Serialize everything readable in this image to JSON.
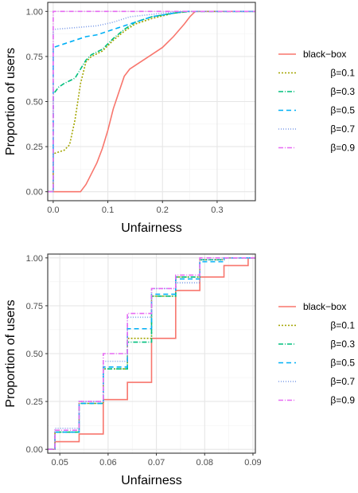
{
  "colors": {
    "black_box": "#F8766D",
    "b01": "#A3A500",
    "b03": "#00BF7D",
    "b05": "#00B0F6",
    "b07": "#7B9BE8",
    "b09": "#E76BF3",
    "grid_major": "#E6E6E6",
    "grid_minor": "#F2F2F2",
    "axis": "#333333"
  },
  "chart_data": [
    {
      "type": "line",
      "subtype": "ecdf-step",
      "xlabel": "Unfairness",
      "ylabel": "Proportion of users",
      "xlim": [
        -0.01,
        0.37
      ],
      "ylim": [
        -0.05,
        1.05
      ],
      "x_ticks": [
        0.0,
        0.1,
        0.2,
        0.3
      ],
      "x_tick_labels": [
        "0.0",
        "0.1",
        "0.2",
        "0.3"
      ],
      "y_ticks": [
        0.0,
        0.25,
        0.5,
        0.75,
        1.0
      ],
      "y_tick_labels": [
        "0.00",
        "0.25",
        "0.50",
        "0.75",
        "1.00"
      ],
      "grid": true,
      "legend_position": "right",
      "series": [
        {
          "name": "black−box",
          "color_key": "black_box",
          "dash": "",
          "points": [
            [
              -0.01,
              0
            ],
            [
              0.05,
              0
            ],
            [
              0.06,
              0.04
            ],
            [
              0.07,
              0.1
            ],
            [
              0.08,
              0.16
            ],
            [
              0.09,
              0.24
            ],
            [
              0.1,
              0.34
            ],
            [
              0.11,
              0.46
            ],
            [
              0.12,
              0.55
            ],
            [
              0.13,
              0.64
            ],
            [
              0.14,
              0.68
            ],
            [
              0.15,
              0.7
            ],
            [
              0.16,
              0.72
            ],
            [
              0.18,
              0.76
            ],
            [
              0.2,
              0.8
            ],
            [
              0.22,
              0.86
            ],
            [
              0.24,
              0.93
            ],
            [
              0.25,
              0.97
            ],
            [
              0.26,
              1.0
            ],
            [
              0.37,
              1.0
            ]
          ]
        },
        {
          "name": "β=0.1",
          "color_key": "b01",
          "dash": "2,2",
          "points": [
            [
              -0.01,
              0
            ],
            [
              0.0,
              0
            ],
            [
              0.0,
              0.21
            ],
            [
              0.02,
              0.23
            ],
            [
              0.03,
              0.26
            ],
            [
              0.04,
              0.4
            ],
            [
              0.05,
              0.6
            ],
            [
              0.06,
              0.72
            ],
            [
              0.07,
              0.75
            ],
            [
              0.09,
              0.78
            ],
            [
              0.11,
              0.84
            ],
            [
              0.13,
              0.89
            ],
            [
              0.15,
              0.93
            ],
            [
              0.18,
              0.96
            ],
            [
              0.22,
              0.99
            ],
            [
              0.25,
              1.0
            ],
            [
              0.37,
              1.0
            ]
          ]
        },
        {
          "name": "β=0.3",
          "color_key": "b03",
          "dash": "6,2,1,2",
          "points": [
            [
              -0.01,
              0
            ],
            [
              0.0,
              0
            ],
            [
              0.0,
              0.54
            ],
            [
              0.01,
              0.58
            ],
            [
              0.02,
              0.6
            ],
            [
              0.04,
              0.63
            ],
            [
              0.05,
              0.68
            ],
            [
              0.06,
              0.73
            ],
            [
              0.07,
              0.76
            ],
            [
              0.09,
              0.79
            ],
            [
              0.11,
              0.85
            ],
            [
              0.13,
              0.9
            ],
            [
              0.15,
              0.94
            ],
            [
              0.18,
              0.97
            ],
            [
              0.22,
              0.99
            ],
            [
              0.25,
              1.0
            ],
            [
              0.37,
              1.0
            ]
          ]
        },
        {
          "name": "β=0.5",
          "color_key": "b05",
          "dash": "6,4",
          "points": [
            [
              -0.01,
              0
            ],
            [
              0.0,
              0
            ],
            [
              0.0,
              0.8
            ],
            [
              0.02,
              0.82
            ],
            [
              0.04,
              0.84
            ],
            [
              0.06,
              0.86
            ],
            [
              0.08,
              0.87
            ],
            [
              0.1,
              0.89
            ],
            [
              0.12,
              0.91
            ],
            [
              0.15,
              0.94
            ],
            [
              0.18,
              0.97
            ],
            [
              0.22,
              0.99
            ],
            [
              0.24,
              1.0
            ],
            [
              0.37,
              1.0
            ]
          ]
        },
        {
          "name": "β=0.7",
          "color_key": "b07",
          "dash": "1,2",
          "points": [
            [
              -0.01,
              0
            ],
            [
              0.0,
              0
            ],
            [
              0.0,
              0.9
            ],
            [
              0.04,
              0.91
            ],
            [
              0.08,
              0.92
            ],
            [
              0.11,
              0.94
            ],
            [
              0.14,
              0.97
            ],
            [
              0.17,
              0.98
            ],
            [
              0.2,
              0.99
            ],
            [
              0.23,
              1.0
            ],
            [
              0.37,
              1.0
            ]
          ]
        },
        {
          "name": "β=0.9",
          "color_key": "b09",
          "dash": "6,2,1,2",
          "points": [
            [
              -0.01,
              0
            ],
            [
              0.0,
              0
            ],
            [
              0.0,
              1.0
            ],
            [
              0.37,
              1.0
            ]
          ]
        }
      ]
    },
    {
      "type": "line",
      "subtype": "ecdf-step",
      "xlabel": "Unfairness",
      "ylabel": "Proportion of users",
      "xlim": [
        0.0475,
        0.0905
      ],
      "ylim": [
        -0.02,
        1.02
      ],
      "x_ticks": [
        0.05,
        0.06,
        0.07,
        0.08,
        0.09
      ],
      "x_tick_labels": [
        "0.05",
        "0.06",
        "0.07",
        "0.08",
        "0.09"
      ],
      "y_ticks": [
        0.0,
        0.25,
        0.5,
        0.75,
        1.0
      ],
      "y_tick_labels": [
        "0.00",
        "0.25",
        "0.50",
        "0.75",
        "1.00"
      ],
      "grid": true,
      "legend_position": "right",
      "series": [
        {
          "name": "black−box",
          "color_key": "black_box",
          "dash": "",
          "points": [
            [
              0.0475,
              0
            ],
            [
              0.049,
              0
            ],
            [
              0.049,
              0.04
            ],
            [
              0.054,
              0.04
            ],
            [
              0.054,
              0.08
            ],
            [
              0.059,
              0.08
            ],
            [
              0.059,
              0.26
            ],
            [
              0.064,
              0.26
            ],
            [
              0.064,
              0.35
            ],
            [
              0.069,
              0.35
            ],
            [
              0.069,
              0.58
            ],
            [
              0.074,
              0.58
            ],
            [
              0.074,
              0.83
            ],
            [
              0.079,
              0.83
            ],
            [
              0.079,
              0.9
            ],
            [
              0.084,
              0.9
            ],
            [
              0.084,
              0.96
            ],
            [
              0.089,
              0.96
            ],
            [
              0.089,
              1.0
            ],
            [
              0.0905,
              1.0
            ]
          ]
        },
        {
          "name": "β=0.1",
          "color_key": "b01",
          "dash": "2,2",
          "points": [
            [
              0.0475,
              0
            ],
            [
              0.049,
              0
            ],
            [
              0.049,
              0.09
            ],
            [
              0.054,
              0.09
            ],
            [
              0.054,
              0.24
            ],
            [
              0.059,
              0.24
            ],
            [
              0.059,
              0.42
            ],
            [
              0.064,
              0.42
            ],
            [
              0.064,
              0.58
            ],
            [
              0.069,
              0.58
            ],
            [
              0.069,
              0.8
            ],
            [
              0.074,
              0.8
            ],
            [
              0.074,
              0.9
            ],
            [
              0.079,
              0.9
            ],
            [
              0.079,
              0.99
            ],
            [
              0.084,
              0.99
            ],
            [
              0.084,
              1.0
            ],
            [
              0.0905,
              1.0
            ]
          ]
        },
        {
          "name": "β=0.3",
          "color_key": "b03",
          "dash": "6,2,1,2",
          "points": [
            [
              0.0475,
              0
            ],
            [
              0.049,
              0
            ],
            [
              0.049,
              0.09
            ],
            [
              0.054,
              0.09
            ],
            [
              0.054,
              0.24
            ],
            [
              0.059,
              0.24
            ],
            [
              0.059,
              0.42
            ],
            [
              0.064,
              0.42
            ],
            [
              0.064,
              0.56
            ],
            [
              0.069,
              0.56
            ],
            [
              0.069,
              0.8
            ],
            [
              0.074,
              0.8
            ],
            [
              0.074,
              0.9
            ],
            [
              0.079,
              0.9
            ],
            [
              0.079,
              0.99
            ],
            [
              0.084,
              0.99
            ],
            [
              0.084,
              1.0
            ],
            [
              0.0905,
              1.0
            ]
          ]
        },
        {
          "name": "β=0.5",
          "color_key": "b05",
          "dash": "6,4",
          "points": [
            [
              0.0475,
              0
            ],
            [
              0.049,
              0
            ],
            [
              0.049,
              0.09
            ],
            [
              0.054,
              0.09
            ],
            [
              0.054,
              0.24
            ],
            [
              0.059,
              0.24
            ],
            [
              0.059,
              0.43
            ],
            [
              0.064,
              0.43
            ],
            [
              0.064,
              0.63
            ],
            [
              0.069,
              0.63
            ],
            [
              0.069,
              0.81
            ],
            [
              0.074,
              0.81
            ],
            [
              0.074,
              0.89
            ],
            [
              0.079,
              0.89
            ],
            [
              0.079,
              0.98
            ],
            [
              0.084,
              0.98
            ],
            [
              0.084,
              1.0
            ],
            [
              0.0905,
              1.0
            ]
          ]
        },
        {
          "name": "β=0.7",
          "color_key": "b07",
          "dash": "1,2",
          "points": [
            [
              0.0475,
              0
            ],
            [
              0.049,
              0
            ],
            [
              0.049,
              0.11
            ],
            [
              0.054,
              0.11
            ],
            [
              0.054,
              0.25
            ],
            [
              0.059,
              0.25
            ],
            [
              0.059,
              0.46
            ],
            [
              0.064,
              0.46
            ],
            [
              0.064,
              0.69
            ],
            [
              0.069,
              0.69
            ],
            [
              0.069,
              0.84
            ],
            [
              0.074,
              0.84
            ],
            [
              0.074,
              0.87
            ],
            [
              0.079,
              0.87
            ],
            [
              0.079,
              0.99
            ],
            [
              0.084,
              0.99
            ],
            [
              0.084,
              1.0
            ],
            [
              0.0905,
              1.0
            ]
          ]
        },
        {
          "name": "β=0.9",
          "color_key": "b09",
          "dash": "6,2,1,2",
          "points": [
            [
              0.0475,
              0
            ],
            [
              0.049,
              0
            ],
            [
              0.049,
              0.1
            ],
            [
              0.054,
              0.1
            ],
            [
              0.054,
              0.25
            ],
            [
              0.059,
              0.25
            ],
            [
              0.059,
              0.5
            ],
            [
              0.064,
              0.5
            ],
            [
              0.064,
              0.71
            ],
            [
              0.069,
              0.71
            ],
            [
              0.069,
              0.84
            ],
            [
              0.074,
              0.84
            ],
            [
              0.074,
              0.91
            ],
            [
              0.079,
              0.91
            ],
            [
              0.079,
              1.0
            ],
            [
              0.0905,
              1.0
            ]
          ]
        }
      ]
    }
  ]
}
